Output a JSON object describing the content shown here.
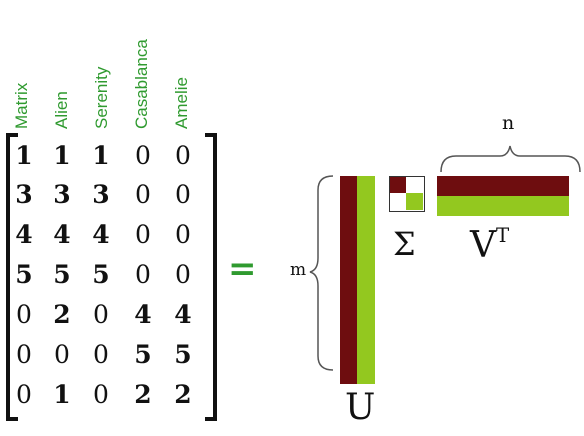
{
  "columns": [
    "Matrix",
    "Alien",
    "Serenity",
    "Casablanca",
    "Amelie"
  ],
  "matrix": [
    [
      "1",
      "1",
      "1",
      "0",
      "0"
    ],
    [
      "3",
      "3",
      "3",
      "0",
      "0"
    ],
    [
      "4",
      "4",
      "4",
      "0",
      "0"
    ],
    [
      "5",
      "5",
      "5",
      "0",
      "0"
    ],
    [
      "0",
      "2",
      "0",
      "4",
      "4"
    ],
    [
      "0",
      "0",
      "0",
      "5",
      "5"
    ],
    [
      "0",
      "1",
      "0",
      "2",
      "2"
    ]
  ],
  "equals_sign": "=",
  "labels": {
    "m": "m",
    "n": "n",
    "U": "U",
    "Sigma": "Σ",
    "V": "V",
    "V_sup": "T"
  },
  "colors": {
    "header_green": "#2f9a2f",
    "maroon": "#6e0d0f",
    "lime": "#93c81f"
  }
}
